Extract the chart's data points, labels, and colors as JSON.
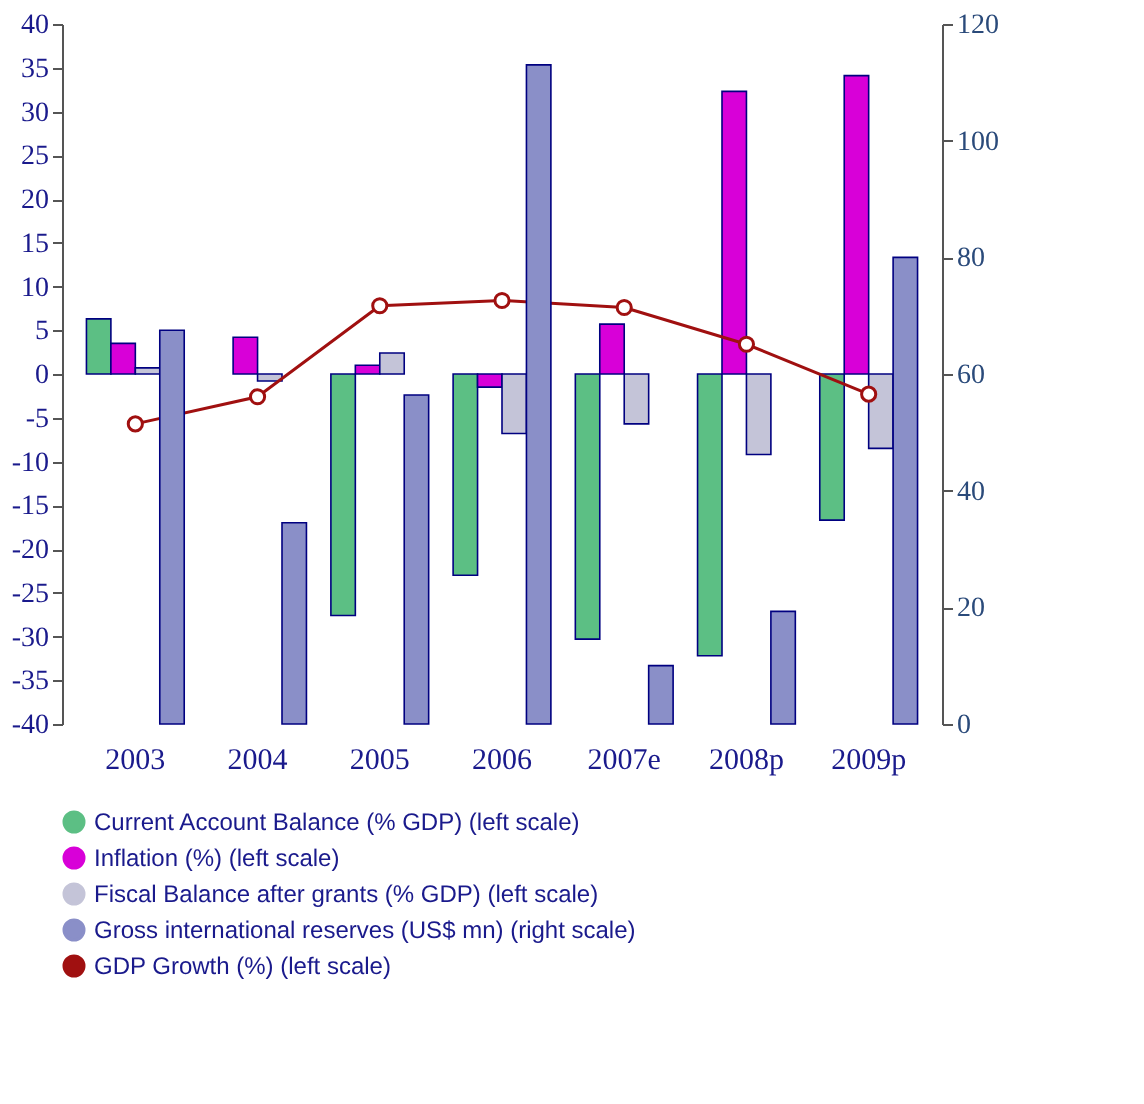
{
  "chart_data": {
    "type": "bar",
    "categories": [
      "2003",
      "2004",
      "2005",
      "2006",
      "2007e",
      "2008p",
      "2009p"
    ],
    "series": [
      {
        "name": "Current Account Balance (% GDP) (left scale)",
        "color": "#5cbf84",
        "values": [
          6.3,
          null,
          -27.6,
          -23,
          -30.3,
          -32.2,
          -16.7
        ]
      },
      {
        "name": "Inflation (%) (left scale)",
        "color": "#d800d8",
        "values": [
          3.5,
          4.2,
          1.0,
          -1.5,
          5.7,
          32.3,
          34.1
        ]
      },
      {
        "name": "Fiscal Balance after grants (% GDP) (left scale)",
        "color": "#c4c4d8",
        "values": [
          0.7,
          -0.8,
          2.4,
          -6.8,
          -5.7,
          -9.2,
          -8.5
        ]
      },
      {
        "name": "Gross international reserves (US$ mn) (right scale)",
        "color": "#8a8fc8",
        "axis": "y2",
        "values": [
          67.5,
          34.5,
          56.4,
          113,
          10,
          19.3,
          80
        ]
      },
      {
        "name": "GDP Growth (%) (left scale)",
        "color": "#a01010",
        "type": "line",
        "marker": "circle",
        "values": [
          -5.7,
          -2.6,
          7.8,
          8.4,
          7.6,
          3.4,
          -2.3
        ]
      }
    ],
    "ylim": [
      -40,
      40
    ],
    "yticks": [
      -40,
      -35,
      -30,
      -25,
      -20,
      -15,
      -10,
      -5,
      0,
      5,
      10,
      15,
      20,
      25,
      30,
      35,
      40
    ],
    "y2lim": [
      0,
      120
    ],
    "y2ticks": [
      0,
      20,
      40,
      60,
      80,
      100,
      120
    ],
    "legend": "bottom",
    "grid": false
  }
}
